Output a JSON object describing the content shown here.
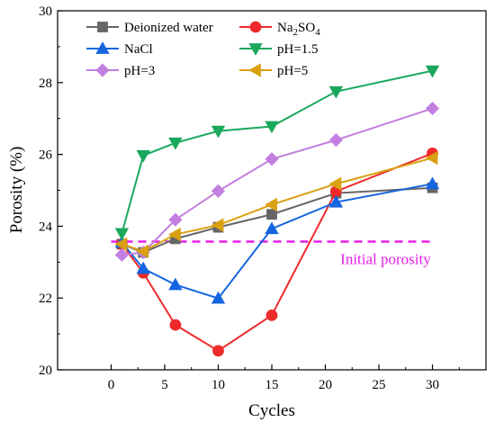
{
  "chart_data": {
    "type": "line",
    "xlabel": "Cycles",
    "ylabel": "Porosity (%)",
    "xlim": [
      -5,
      35
    ],
    "ylim": [
      20,
      30
    ],
    "xticks": [
      "0",
      "5",
      "10",
      "15",
      "20",
      "25",
      "30"
    ],
    "yticks": [
      "20",
      "22",
      "24",
      "26",
      "28",
      "30"
    ],
    "grid": false,
    "legend_position": "top",
    "series": [
      {
        "name": "Deionized water",
        "color": "#666666",
        "marker": "square",
        "x": [
          1,
          3,
          6,
          10,
          15,
          21,
          30
        ],
        "y": [
          23.5,
          23.27,
          23.65,
          23.97,
          24.33,
          24.92,
          25.07
        ]
      },
      {
        "name": "Na2SO4",
        "color": "#ee2a2a",
        "marker": "circle",
        "x": [
          1,
          3,
          6,
          10,
          15,
          21,
          30
        ],
        "y": [
          23.5,
          22.7,
          21.25,
          20.53,
          21.52,
          24.97,
          26.03
        ]
      },
      {
        "name": "NaCl",
        "color": "#1565e0",
        "marker": "triangle-up",
        "x": [
          1,
          3,
          6,
          10,
          15,
          21,
          30
        ],
        "y": [
          23.55,
          22.82,
          22.37,
          21.99,
          23.93,
          24.67,
          25.18
        ]
      },
      {
        "name": "pH=1.5",
        "color": "#1aa85c",
        "marker": "triangle-down",
        "x": [
          1,
          3,
          6,
          10,
          15,
          21,
          30
        ],
        "y": [
          23.8,
          25.97,
          26.32,
          26.65,
          26.78,
          27.75,
          28.33
        ]
      },
      {
        "name": "pH=3",
        "color": "#c27ee0",
        "marker": "diamond",
        "x": [
          1,
          3,
          6,
          10,
          15,
          21,
          30
        ],
        "y": [
          23.2,
          23.27,
          24.18,
          24.98,
          25.87,
          26.4,
          27.28
        ]
      },
      {
        "name": "pH=5",
        "color": "#d9a010",
        "marker": "triangle-left",
        "x": [
          1,
          3,
          6,
          10,
          15,
          21,
          30
        ],
        "y": [
          23.5,
          23.3,
          23.77,
          24.03,
          24.6,
          25.18,
          25.9
        ]
      }
    ],
    "reference_line": {
      "y": 23.57,
      "label": "Initial porosity",
      "color": "#e81ee8",
      "style": "dashed"
    }
  }
}
